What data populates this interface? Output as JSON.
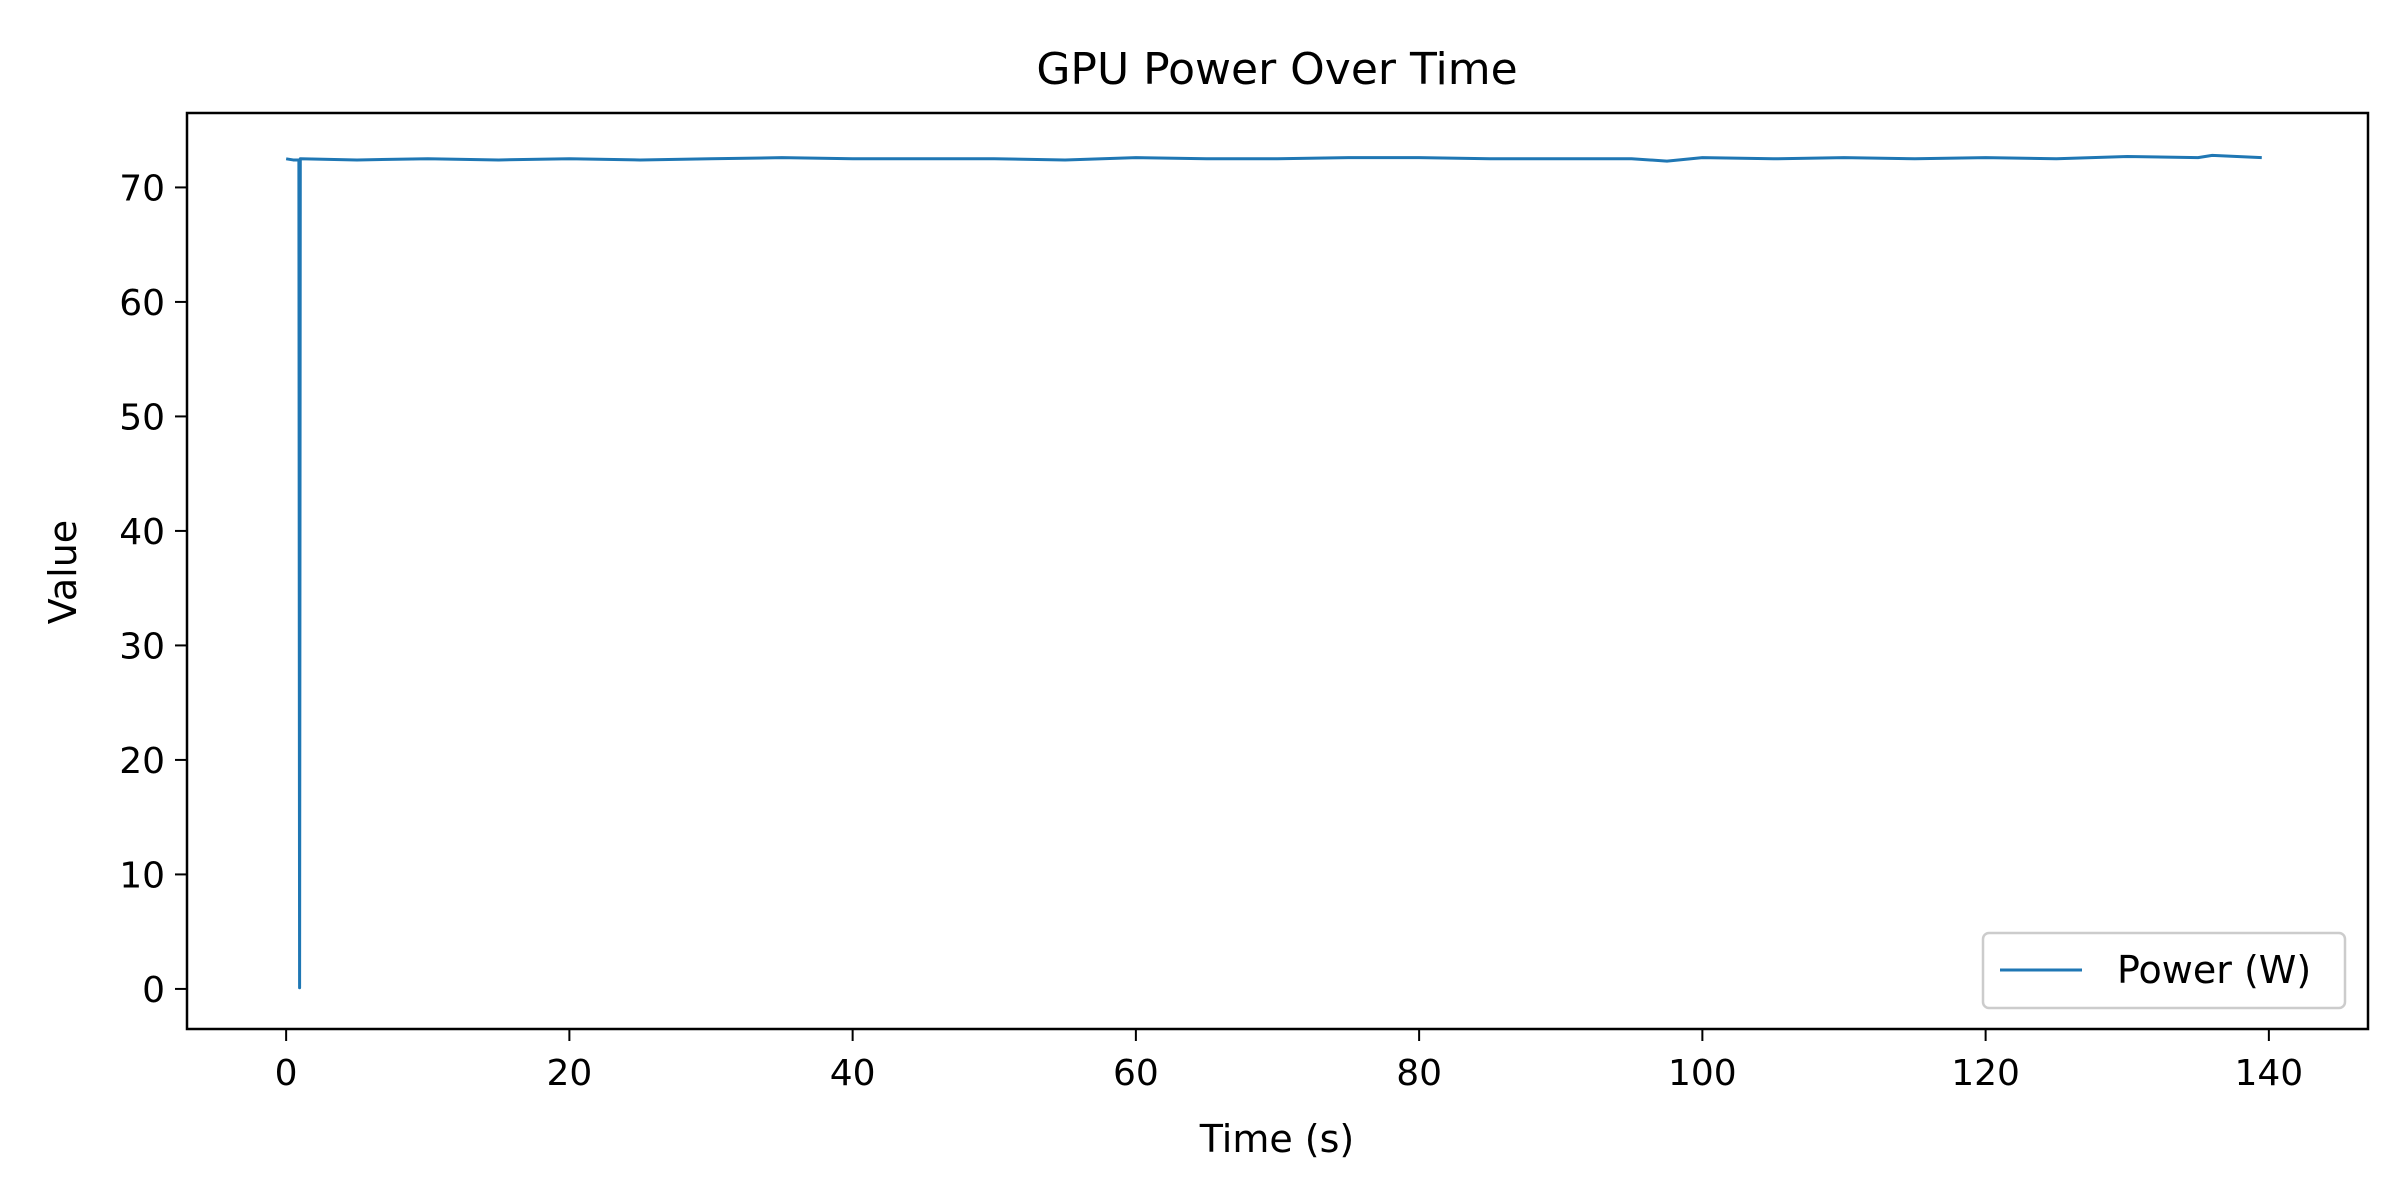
{
  "chart_data": {
    "type": "line",
    "title": "GPU Power Over Time",
    "xlabel": "Time (s)",
    "ylabel": "Value",
    "xlim": [
      -7,
      147
    ],
    "ylim": [
      -3.5,
      76.5
    ],
    "xticks": [
      0,
      20,
      40,
      60,
      80,
      100,
      120,
      140
    ],
    "yticks": [
      0,
      10,
      20,
      30,
      40,
      50,
      60,
      70
    ],
    "grid": false,
    "legend_position": "bottom-right",
    "colors": {
      "series": "#1f77b4",
      "axes": "#000000",
      "legend_border": "#cccccc"
    },
    "series": [
      {
        "name": "Power (W)",
        "points": [
          [
            0.0,
            72.5
          ],
          [
            0.5,
            72.4
          ],
          [
            0.9,
            72.4
          ],
          [
            0.95,
            0.1
          ],
          [
            1.0,
            72.5
          ],
          [
            5,
            72.4
          ],
          [
            10,
            72.5
          ],
          [
            15,
            72.4
          ],
          [
            20,
            72.5
          ],
          [
            25,
            72.4
          ],
          [
            30,
            72.5
          ],
          [
            35,
            72.6
          ],
          [
            40,
            72.5
          ],
          [
            45,
            72.5
          ],
          [
            50,
            72.5
          ],
          [
            55,
            72.4
          ],
          [
            60,
            72.6
          ],
          [
            65,
            72.5
          ],
          [
            70,
            72.5
          ],
          [
            75,
            72.6
          ],
          [
            80,
            72.6
          ],
          [
            85,
            72.5
          ],
          [
            90,
            72.5
          ],
          [
            95,
            72.5
          ],
          [
            97.5,
            72.3
          ],
          [
            100,
            72.6
          ],
          [
            105,
            72.5
          ],
          [
            110,
            72.6
          ],
          [
            115,
            72.5
          ],
          [
            120,
            72.6
          ],
          [
            125,
            72.5
          ],
          [
            130,
            72.7
          ],
          [
            135,
            72.6
          ],
          [
            136,
            72.8
          ],
          [
            139.5,
            72.6
          ]
        ]
      }
    ]
  }
}
